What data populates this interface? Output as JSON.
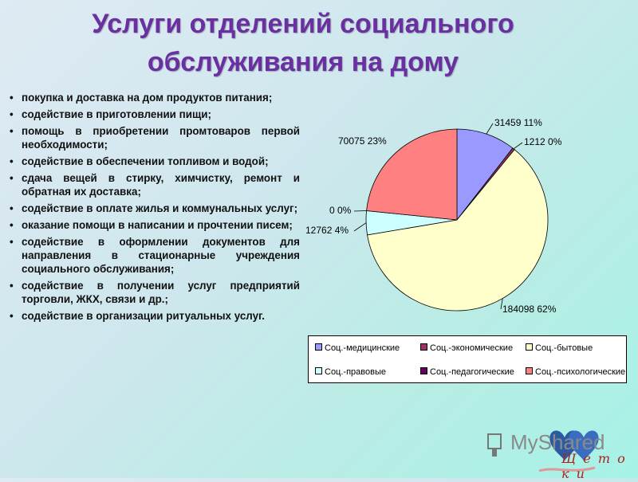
{
  "title": {
    "line1": "Услуги отделений социального",
    "line2": "обслуживания на дому"
  },
  "services": [
    "покупка и доставка на дом продуктов питания;",
    "содействие в приготовлении пищи;",
    "помощь в приобретении промтоваров первой необходимости;",
    "содействие в обеспечении топливом и водой;",
    "сдача вещей в стирку, химчистку, ремонт и обратная их доставка;",
    "содействие в оплате жилья и коммунальных услуг;",
    "оказание помощи в написании и прочтении писем;",
    "содействие в оформлении документов для направления в стационарные учреждения социального обслуживания;",
    "содействие в получении услуг предприятий торговли, ЖКХ, связи и др.;",
    "содействие в организации ритуальных услуг."
  ],
  "chart_data": {
    "type": "pie",
    "title": "",
    "slices": [
      {
        "name": "Соц.-медицинские",
        "value": 31459,
        "percent": 11,
        "label": "31459 11%",
        "color": "#9999ff"
      },
      {
        "name": "Соц.-экономические",
        "value": 1212,
        "percent": 0,
        "label": "1212 0%",
        "color": "#993366"
      },
      {
        "name": "Соц.-бытовые",
        "value": 184098,
        "percent": 62,
        "label": "184098 62%",
        "color": "#ffffcc"
      },
      {
        "name": "Соц.-правовые",
        "value": 12762,
        "percent": 4,
        "label": "12762 4%",
        "color": "#ccffff"
      },
      {
        "name": "Соц.-педагогические",
        "value": 0,
        "percent": 0,
        "label": "0 0%",
        "color": "#660066"
      },
      {
        "name": "Соц.-психологические",
        "value": 70075,
        "percent": 23,
        "label": "70075 23%",
        "color": "#ff8080"
      }
    ],
    "legend_position": "bottom"
  },
  "logo": {
    "text": "MyShared",
    "script": "Щ е т о к и"
  }
}
